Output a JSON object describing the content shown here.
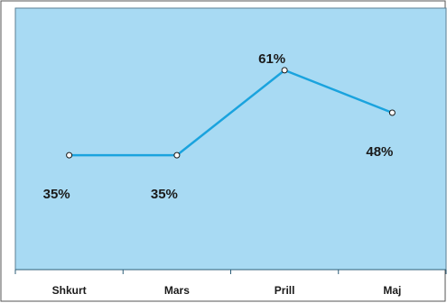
{
  "chart_data": {
    "type": "line",
    "categories": [
      "Shkurt",
      "Mars",
      "Prill",
      "Maj"
    ],
    "series": [
      {
        "values": [
          35,
          35,
          61,
          48
        ]
      }
    ],
    "data_labels": [
      "35%",
      "35%",
      "61%",
      "48%"
    ],
    "title": "",
    "xlabel": "",
    "ylabel": "",
    "ylim": [
      0,
      80
    ],
    "grid": false,
    "legend": "none"
  },
  "colors": {
    "plot_background": "#a8daf3",
    "line": "#1aa3de",
    "marker_fill": "#ffffff",
    "marker_stroke": "#1a1a1a",
    "frame": "#555555"
  }
}
